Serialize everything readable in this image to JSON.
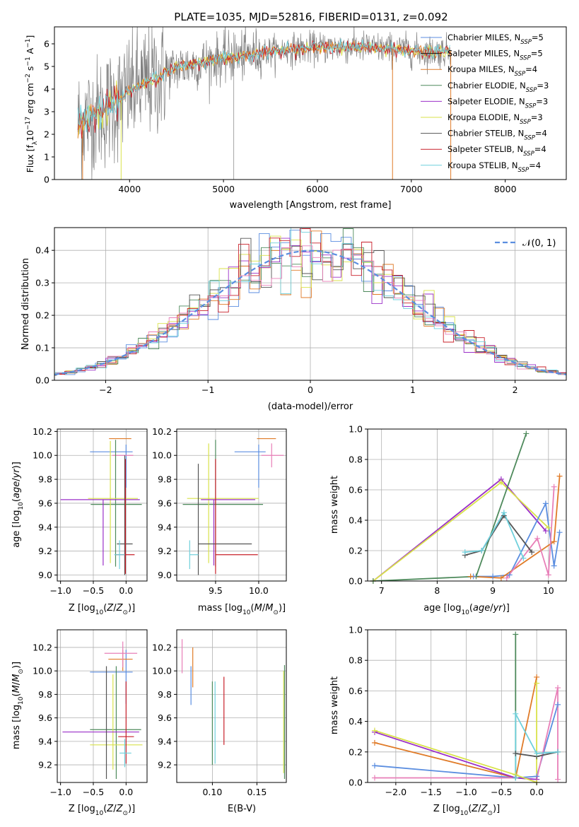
{
  "figure": {
    "title": "PLATE=1035, MJD=52816, FIBERID=0131, z=0.092"
  },
  "colors": {
    "chabrier_miles": "#5b8ee0",
    "salpeter_miles": "#1a1a1a",
    "kroupa_miles": "#e07b28",
    "chabrier_elodie": "#4e8a5c",
    "salpeter_elodie": "#9b30c8",
    "kroupa_elodie": "#d9e24a",
    "chabrier_stelib": "#555555",
    "salpeter_stelib": "#c8202a",
    "kroupa_stelib": "#6fd0dc",
    "pink": "#e87fb8",
    "data": "#808080",
    "grid": "#b0b0b0"
  },
  "chart_data": [
    {
      "id": "spectrum",
      "type": "line",
      "title": "PLATE=1035, MJD=52816, FIBERID=0131, z=0.092",
      "xlabel": "wavelength [Angstrom, rest frame]",
      "ylabel": "Flux [f_λ 10^-17 erg cm^-2 s^-1 A^-1]",
      "xlim": [
        3200,
        8650
      ],
      "ylim": [
        0,
        6.75
      ],
      "xticks": [
        4000,
        5000,
        6000,
        7000,
        8000
      ],
      "yticks": [
        0,
        1,
        2,
        3,
        4,
        5,
        6
      ],
      "grid": false,
      "legend_position": "right",
      "continuum": {
        "x": [
          3450,
          3600,
          3700,
          3800,
          3900,
          4000,
          4100,
          4200,
          4300,
          4400,
          4500,
          4700,
          4900,
          5100,
          5300,
          5500,
          5700,
          5900,
          6100,
          6300,
          6500,
          6700,
          6900,
          7100,
          7300,
          7420
        ],
        "y": [
          2.5,
          2.8,
          3.0,
          3.25,
          3.5,
          3.9,
          4.1,
          4.35,
          4.5,
          4.75,
          4.95,
          5.1,
          5.3,
          5.4,
          5.55,
          5.65,
          5.75,
          5.8,
          5.85,
          5.85,
          5.85,
          5.8,
          5.75,
          5.65,
          5.65,
          5.7
        ]
      },
      "series": [
        {
          "name": "Chabrier MILES, N_SSP=5",
          "label_main": "Chabrier MILES, N",
          "label_sub": "SSP",
          "label_end": "=5",
          "color_key": "chabrier_miles"
        },
        {
          "name": "Salpeter MILES, N_SSP=5",
          "label_main": "Salpeter MILES, N",
          "label_sub": "SSP",
          "label_end": "=5",
          "color_key": "salpeter_miles"
        },
        {
          "name": "Kroupa MILES, N_SSP=4",
          "label_main": "Kroupa MILES, N",
          "label_sub": "SSP",
          "label_end": "=4",
          "color_key": "kroupa_miles"
        },
        {
          "name": "Chabrier ELODIE, N_SSP=3",
          "label_main": "Chabrier ELODIE, N",
          "label_sub": "SSP",
          "label_end": "=3",
          "color_key": "chabrier_elodie"
        },
        {
          "name": "Salpeter ELODIE, N_SSP=3",
          "label_main": "Salpeter ELODIE, N",
          "label_sub": "SSP",
          "label_end": "=3",
          "color_key": "salpeter_elodie"
        },
        {
          "name": "Kroupa ELODIE, N_SSP=3",
          "label_main": "Kroupa ELODIE, N",
          "label_sub": "SSP",
          "label_end": "=3",
          "color_key": "kroupa_elodie"
        },
        {
          "name": "Chabrier STELIB, N_SSP=4",
          "label_main": "Chabrier STELIB, N",
          "label_sub": "SSP",
          "label_end": "=4",
          "color_key": "chabrier_stelib"
        },
        {
          "name": "Salpeter STELIB, N_SSP=4",
          "label_main": "Salpeter STELIB, N",
          "label_sub": "SSP",
          "label_end": "=4",
          "color_key": "salpeter_stelib"
        },
        {
          "name": "Kroupa STELIB, N_SSP=4",
          "label_main": "Kroupa STELIB, N",
          "label_sub": "SSP",
          "label_end": "=4",
          "color_key": "kroupa_stelib"
        }
      ]
    },
    {
      "id": "residuals",
      "type": "histogram",
      "xlabel": "(data-model)/error",
      "ylabel": "Normed distribution",
      "xlim": [
        -2.5,
        2.5
      ],
      "ylim": [
        0,
        0.47
      ],
      "xticks": [
        -2,
        -1,
        0,
        1,
        2
      ],
      "yticks": [
        0.0,
        0.1,
        0.2,
        0.3,
        0.4
      ],
      "grid": true,
      "legend": "𝒩(0, 1)",
      "legend_position": "top-right",
      "bin_width": 0.1
    },
    {
      "id": "z-age",
      "type": "errorbar",
      "xlabel": "Z [log10(Z/Z⊙)]",
      "ylabel": "age [log10(age/yr)]",
      "xlim": [
        -1.05,
        0.32
      ],
      "ylim": [
        8.95,
        10.22
      ],
      "xticks": [
        -1.0,
        -0.5,
        0.0
      ],
      "yticks": [
        9.0,
        9.2,
        9.4,
        9.6,
        9.8,
        10.0,
        10.2
      ],
      "grid": true,
      "points": [
        {
          "color": "chabrier_miles",
          "x": 0.0,
          "y": 10.03,
          "xerr": [
            0.55,
            0.1
          ],
          "yerr": [
            0.3,
            0.06
          ]
        },
        {
          "color": "kroupa_miles",
          "x": -0.04,
          "y": 10.14,
          "xerr": [
            0.22,
            0.12
          ],
          "yerr": [
            0.0,
            0.0
          ]
        },
        {
          "color": "pink",
          "x": -0.05,
          "y": 10.0,
          "xerr": [
            0.16,
            0.16
          ],
          "yerr": [
            0.0,
            0.0
          ]
        },
        {
          "color": "chabrier_elodie",
          "x": -0.16,
          "y": 9.59,
          "xerr": [
            0.38,
            0.4
          ],
          "yerr": [
            0.52,
            0.54
          ]
        },
        {
          "color": "kroupa_elodie",
          "x": -0.24,
          "y": 9.64,
          "xerr": [
            0.34,
            0.42
          ],
          "yerr": [
            0.54,
            0.48
          ]
        },
        {
          "color": "salpeter_elodie",
          "x": -0.35,
          "y": 9.63,
          "xerr": [
            0.65,
            0.56
          ],
          "yerr": [
            0.55,
            0.0
          ]
        },
        {
          "color": "chabrier_stelib",
          "x": -0.02,
          "y": 9.26,
          "xerr": [
            0.12,
            0.12
          ],
          "yerr": [
            0.26,
            0.74
          ]
        },
        {
          "color": "salpeter_stelib",
          "x": -0.01,
          "y": 9.17,
          "xerr": [
            0.15,
            0.14
          ],
          "yerr": [
            0.16,
            0.8
          ]
        },
        {
          "color": "kroupa_stelib",
          "x": -0.1,
          "y": 9.17,
          "xerr": [
            0.08,
            0.08
          ],
          "yerr": [
            0.12,
            0.12
          ]
        }
      ]
    },
    {
      "id": "mass-age",
      "type": "errorbar",
      "xlabel": "mass [log10(M/M⊙)]",
      "ylabel": "",
      "xlim": [
        9.05,
        10.32
      ],
      "ylim": [
        8.95,
        10.22
      ],
      "xticks": [
        9.5,
        10.0
      ],
      "yticks": [
        9.0,
        9.2,
        9.4,
        9.6,
        9.8,
        10.0,
        10.2
      ],
      "grid": true,
      "points": [
        {
          "color": "chabrier_miles",
          "x": 10.0,
          "y": 10.03,
          "xerr": [
            0.28,
            0.08
          ],
          "yerr": [
            0.3,
            0.06
          ]
        },
        {
          "color": "kroupa_miles",
          "x": 10.1,
          "y": 10.14,
          "xerr": [
            0.12,
            0.1
          ],
          "yerr": [
            0.0,
            0.0
          ]
        },
        {
          "color": "pink",
          "x": 10.15,
          "y": 10.0,
          "xerr": [
            0.12,
            0.14
          ],
          "yerr": [
            0.1,
            0.1
          ]
        },
        {
          "color": "chabrier_elodie",
          "x": 9.5,
          "y": 9.59,
          "xerr": [
            0.38,
            0.55
          ],
          "yerr": [
            0.52,
            0.54
          ]
        },
        {
          "color": "kroupa_elodie",
          "x": 9.42,
          "y": 9.64,
          "xerr": [
            0.25,
            0.58
          ],
          "yerr": [
            0.54,
            0.46
          ]
        },
        {
          "color": "salpeter_elodie",
          "x": 9.48,
          "y": 9.63,
          "xerr": [
            0.15,
            0.48
          ],
          "yerr": [
            0.55,
            0.0
          ]
        },
        {
          "color": "chabrier_stelib",
          "x": 9.3,
          "y": 9.26,
          "xerr": [
            0.0,
            0.62
          ],
          "yerr": [
            0.26,
            0.67
          ]
        },
        {
          "color": "salpeter_stelib",
          "x": 9.5,
          "y": 9.17,
          "xerr": [
            0.0,
            0.49
          ],
          "yerr": [
            0.16,
            0.8
          ]
        },
        {
          "color": "kroupa_stelib",
          "x": 9.2,
          "y": 9.17,
          "xerr": [
            0.0,
            0.1
          ],
          "yerr": [
            0.12,
            0.12
          ]
        }
      ]
    },
    {
      "id": "weight-age",
      "type": "line",
      "xlabel": "age [log10(age/yr)]",
      "ylabel": "mass weight",
      "xlim": [
        6.75,
        10.32
      ],
      "ylim": [
        0,
        1.0
      ],
      "xticks": [
        7,
        8,
        9,
        10
      ],
      "yticks": [
        0.0,
        0.2,
        0.4,
        0.6,
        0.8,
        1.0
      ],
      "grid": true,
      "series": [
        {
          "color": "salpeter_elodie",
          "x": [
            6.85,
            9.15,
            9.95
          ],
          "y": [
            0.0,
            0.67,
            0.33
          ]
        },
        {
          "color": "kroupa_elodie",
          "x": [
            6.85,
            9.15,
            10.0
          ],
          "y": [
            0.0,
            0.65,
            0.35
          ]
        },
        {
          "color": "chabrier_elodie",
          "x": [
            6.85,
            8.7,
            9.6
          ],
          "y": [
            0.0,
            0.03,
            0.97
          ]
        },
        {
          "color": "chabrier_miles",
          "x": [
            8.65,
            9.0,
            9.3,
            9.95,
            10.1,
            10.2
          ],
          "y": [
            0.03,
            0.03,
            0.04,
            0.51,
            0.1,
            0.32
          ]
        },
        {
          "color": "kroupa_miles",
          "x": [
            8.6,
            9.15,
            10.1,
            10.2
          ],
          "y": [
            0.03,
            0.02,
            0.26,
            0.69
          ]
        },
        {
          "color": "pink",
          "x": [
            9.25,
            9.8,
            10.0,
            10.1
          ],
          "y": [
            0.02,
            0.28,
            0.04,
            0.62
          ]
        },
        {
          "color": "chabrier_stelib",
          "x": [
            8.5,
            8.8,
            9.2,
            9.7
          ],
          "y": [
            0.17,
            0.2,
            0.43,
            0.19
          ]
        },
        {
          "color": "kroupa_stelib",
          "x": [
            8.5,
            8.8,
            9.2,
            9.55
          ],
          "y": [
            0.19,
            0.2,
            0.45,
            0.15
          ]
        }
      ]
    },
    {
      "id": "z-mass",
      "type": "errorbar",
      "xlabel": "Z [log10(Z/Z⊙)]",
      "ylabel": "mass [log10(M/M⊙)]",
      "xlim": [
        -1.05,
        0.32
      ],
      "ylim": [
        9.05,
        10.35
      ],
      "xticks": [
        -1.0,
        -0.5,
        0.0
      ],
      "yticks": [
        9.2,
        9.4,
        9.6,
        9.8,
        10.0,
        10.2
      ],
      "grid": true,
      "points": [
        {
          "color": "chabrier_miles",
          "x": 0.0,
          "y": 9.99,
          "xerr": [
            0.55,
            0.1
          ],
          "yerr": [
            0.27,
            0.19
          ]
        },
        {
          "color": "kroupa_miles",
          "x": -0.05,
          "y": 10.1,
          "xerr": [
            0.22,
            0.15
          ],
          "yerr": [
            0.1,
            0.08
          ]
        },
        {
          "color": "pink",
          "x": -0.05,
          "y": 10.15,
          "xerr": [
            0.28,
            0.22
          ],
          "yerr": [
            0.12,
            0.1
          ]
        },
        {
          "color": "chabrier_elodie",
          "x": -0.15,
          "y": 9.5,
          "xerr": [
            0.4,
            0.38
          ],
          "yerr": [
            0.42,
            0.54
          ]
        },
        {
          "color": "kroupa_elodie",
          "x": -0.2,
          "y": 9.37,
          "xerr": [
            0.35,
            0.45
          ],
          "yerr": [
            0.21,
            0.6
          ]
        },
        {
          "color": "salpeter_elodie",
          "x": -0.35,
          "y": 9.48,
          "xerr": [
            0.62,
            0.55
          ],
          "yerr": [
            0.0,
            0.0
          ]
        },
        {
          "color": "chabrier_stelib",
          "x": -0.3,
          "y": 9.3,
          "xerr": [
            0.0,
            0.0
          ],
          "yerr": [
            0.22,
            0.74
          ]
        },
        {
          "color": "salpeter_stelib",
          "x": 0.0,
          "y": 9.44,
          "xerr": [
            0.12,
            0.12
          ],
          "yerr": [
            0.23,
            0.47
          ]
        },
        {
          "color": "kroupa_stelib",
          "x": -0.02,
          "y": 9.3,
          "xerr": [
            0.08,
            0.1
          ],
          "yerr": [
            0.12,
            0.12
          ]
        }
      ]
    },
    {
      "id": "ebv-mass",
      "type": "errorbar",
      "xlabel": "E(B-V)",
      "ylabel": "",
      "xlim": [
        0.06,
        0.183
      ],
      "ylim": [
        9.05,
        10.35
      ],
      "xticks": [
        0.1,
        0.15
      ],
      "yticks": [
        9.2,
        9.4,
        9.6,
        9.8,
        10.0,
        10.2
      ],
      "grid": true,
      "points": [
        {
          "color": "pink",
          "x": 0.066,
          "y": 10.13,
          "yerr": [
            0.15,
            0.14
          ]
        },
        {
          "color": "chabrier_miles",
          "x": 0.076,
          "y": 9.9,
          "yerr": [
            0.19,
            0.14
          ]
        },
        {
          "color": "kroupa_miles",
          "x": 0.078,
          "y": 10.03,
          "yerr": [
            0.17,
            0.17
          ]
        },
        {
          "color": "chabrier_elodie",
          "x": 0.1,
          "y": 9.56,
          "yerr": [
            0.36,
            0.35
          ]
        },
        {
          "color": "kroupa_stelib",
          "x": 0.103,
          "y": 9.56,
          "yerr": [
            0.35,
            0.35
          ]
        },
        {
          "color": "salpeter_stelib",
          "x": 0.113,
          "y": 9.66,
          "yerr": [
            0.29,
            0.29
          ]
        },
        {
          "color": "kroupa_elodie",
          "x": 0.18,
          "y": 9.55,
          "yerr": [
            0.42,
            0.45
          ]
        },
        {
          "color": "chabrier_elodie",
          "x": 0.181,
          "y": 9.55,
          "yerr": [
            0.47,
            0.5
          ]
        }
      ]
    },
    {
      "id": "weight-z",
      "type": "line",
      "xlabel": "Z [log10(Z/Z⊙)]",
      "ylabel": "mass weight",
      "xlim": [
        -2.4,
        0.42
      ],
      "ylim": [
        0,
        1.0
      ],
      "xticks": [
        -2.0,
        -1.5,
        -1.0,
        -0.5,
        0.0
      ],
      "yticks": [
        0.0,
        0.2,
        0.4,
        0.6,
        0.8,
        1.0
      ],
      "grid": true,
      "series": [
        {
          "color": "chabrier_miles",
          "x": [
            -2.3,
            -0.3,
            0.0,
            0.3
          ],
          "y": [
            0.11,
            0.03,
            0.04,
            0.51
          ]
        },
        {
          "color": "kroupa_miles",
          "x": [
            -2.3,
            -0.3,
            0.0
          ],
          "y": [
            0.26,
            0.03,
            0.69
          ]
        },
        {
          "color": "pink",
          "x": [
            -2.3,
            -0.3,
            0.0,
            0.3,
            0.3
          ],
          "y": [
            0.03,
            0.03,
            0.02,
            0.62,
            0.02
          ]
        },
        {
          "color": "salpeter_elodie",
          "x": [
            -2.3,
            -0.3,
            0.0
          ],
          "y": [
            0.33,
            0.03,
            0.02
          ]
        },
        {
          "color": "kroupa_elodie",
          "x": [
            -2.3,
            -0.3,
            0.0,
            0.0
          ],
          "y": [
            0.34,
            0.05,
            0.0,
            0.65
          ]
        },
        {
          "color": "chabrier_elodie",
          "x": [
            -0.3,
            -0.3
          ],
          "y": [
            0.03,
            0.97
          ]
        },
        {
          "color": "chabrier_stelib",
          "x": [
            -0.3,
            0.0,
            0.3
          ],
          "y": [
            0.19,
            0.17,
            0.2
          ]
        },
        {
          "color": "kroupa_stelib",
          "x": [
            -0.3,
            -0.3,
            0.0,
            0.3
          ],
          "y": [
            0.03,
            0.45,
            0.19,
            0.2
          ]
        }
      ]
    }
  ]
}
